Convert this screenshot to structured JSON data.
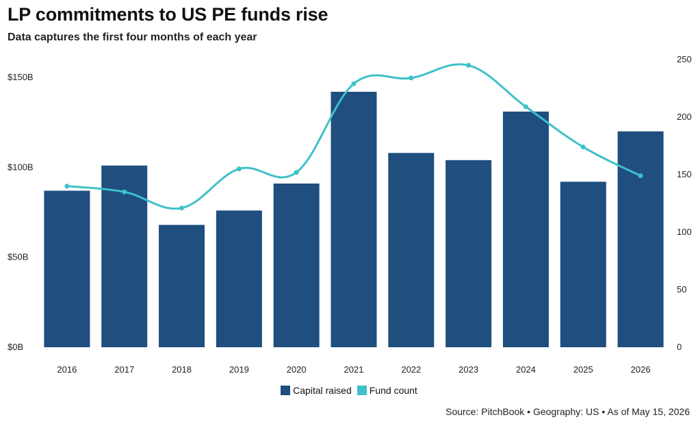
{
  "chart_data": {
    "type": "bar",
    "title": "LP commitments to US PE funds rise",
    "subtitle": "Data captures the first four months of each year",
    "categories": [
      "2016",
      "2017",
      "2018",
      "2019",
      "2020",
      "2021",
      "2022",
      "2023",
      "2024",
      "2025",
      "2026"
    ],
    "series": [
      {
        "name": "Capital raised",
        "type": "bar",
        "axis": "left",
        "color": "#1f4e7f",
        "values": [
          87,
          101,
          68,
          76,
          91,
          142,
          108,
          104,
          131,
          92,
          120
        ]
      },
      {
        "name": "Fund count",
        "type": "line",
        "axis": "right",
        "color": "#3ec1c9",
        "values": [
          140,
          135,
          121,
          155,
          152,
          229,
          234,
          245,
          209,
          174,
          149
        ]
      }
    ],
    "y_left": {
      "ticks": [
        "$0B",
        "$50B",
        "$100B",
        "$150B"
      ],
      "tick_values": [
        0,
        50,
        100,
        150
      ],
      "range": [
        0,
        160
      ]
    },
    "y_right": {
      "ticks": [
        "0",
        "50",
        "100",
        "150",
        "200",
        "250"
      ],
      "tick_values": [
        0,
        50,
        100,
        150,
        200,
        250
      ],
      "range": [
        0,
        250
      ]
    },
    "grid": false,
    "legend_position": "bottom-center"
  },
  "source": "Source: PitchBook • Geography: US • As of May 15, 2026"
}
